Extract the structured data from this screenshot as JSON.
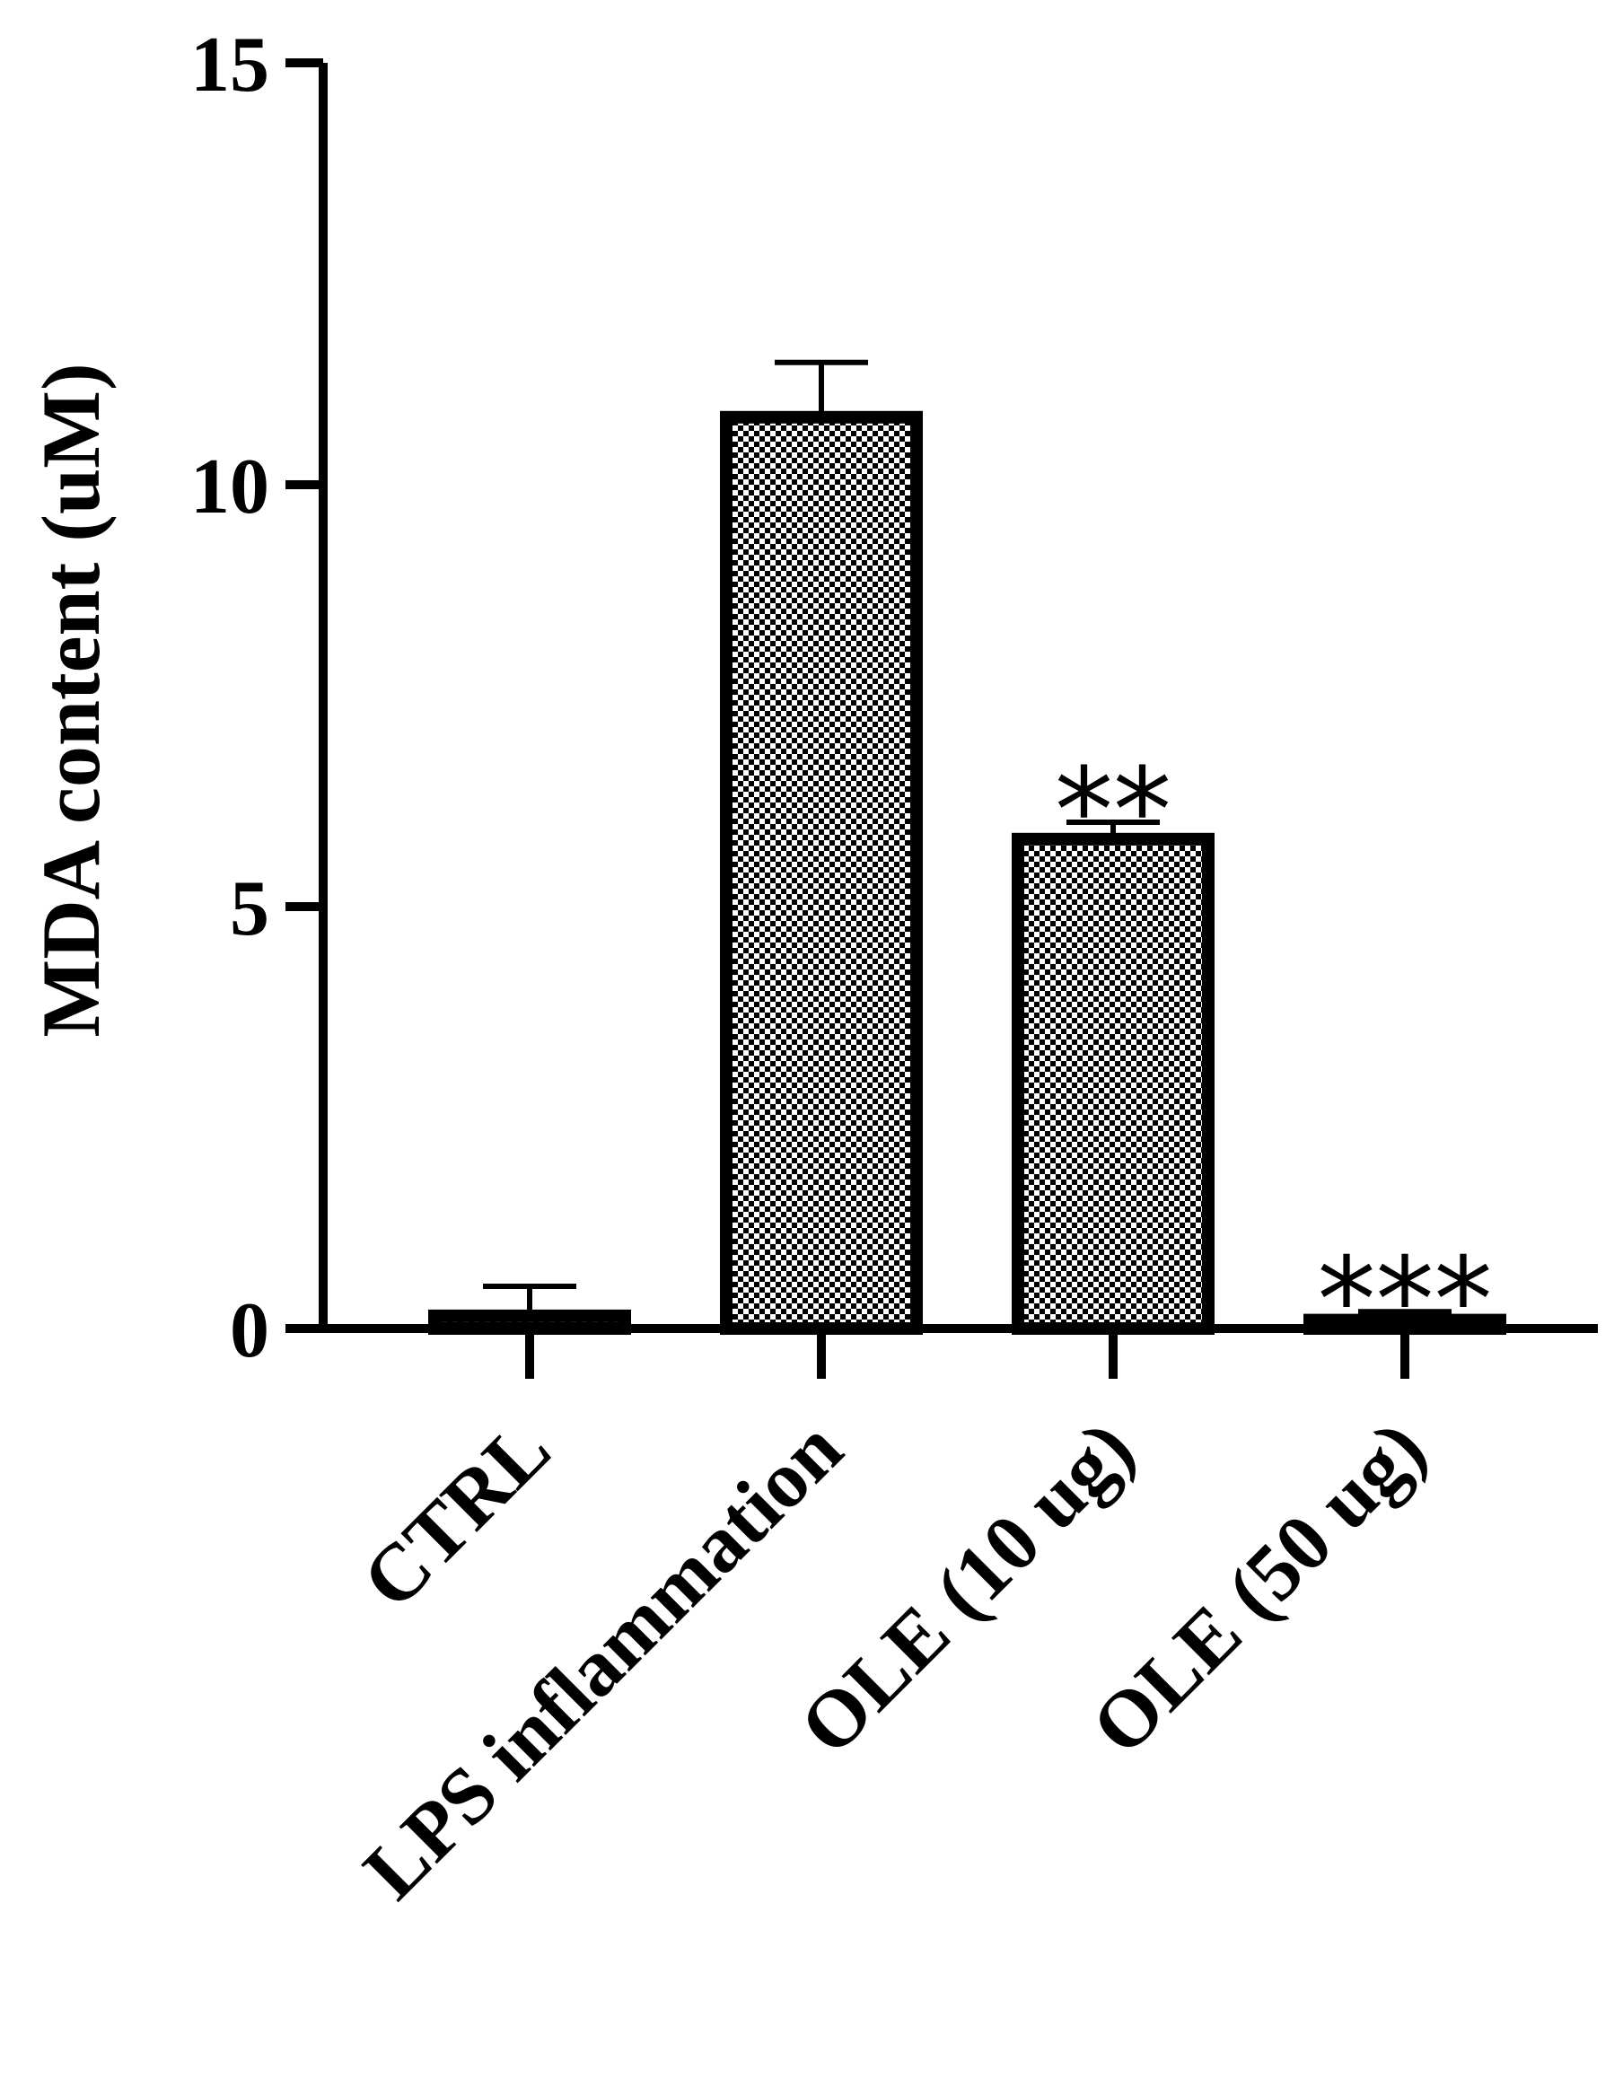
{
  "chart_data": {
    "type": "bar",
    "title": "",
    "xlabel": "",
    "ylabel": "MDA content (uM)",
    "ylim": [
      0,
      15
    ],
    "yticks": [
      0,
      5,
      10,
      15
    ],
    "categories": [
      "CTRL",
      "LPS inflammation",
      "OLE (10 ug)",
      "OLE (50 ug)"
    ],
    "values": [
      0.15,
      10.8,
      5.8,
      0.1
    ],
    "errors": [
      0.35,
      0.65,
      0.2,
      0.1
    ],
    "annotations": [
      "",
      "",
      "**",
      "***"
    ],
    "bar_fill": "checkered black and white",
    "grid": false,
    "legend": "none",
    "colors": {
      "bar_outline": "#000000",
      "checker_dark": "#000000",
      "checker_light": "#ffffff",
      "axis": "#000000"
    }
  }
}
